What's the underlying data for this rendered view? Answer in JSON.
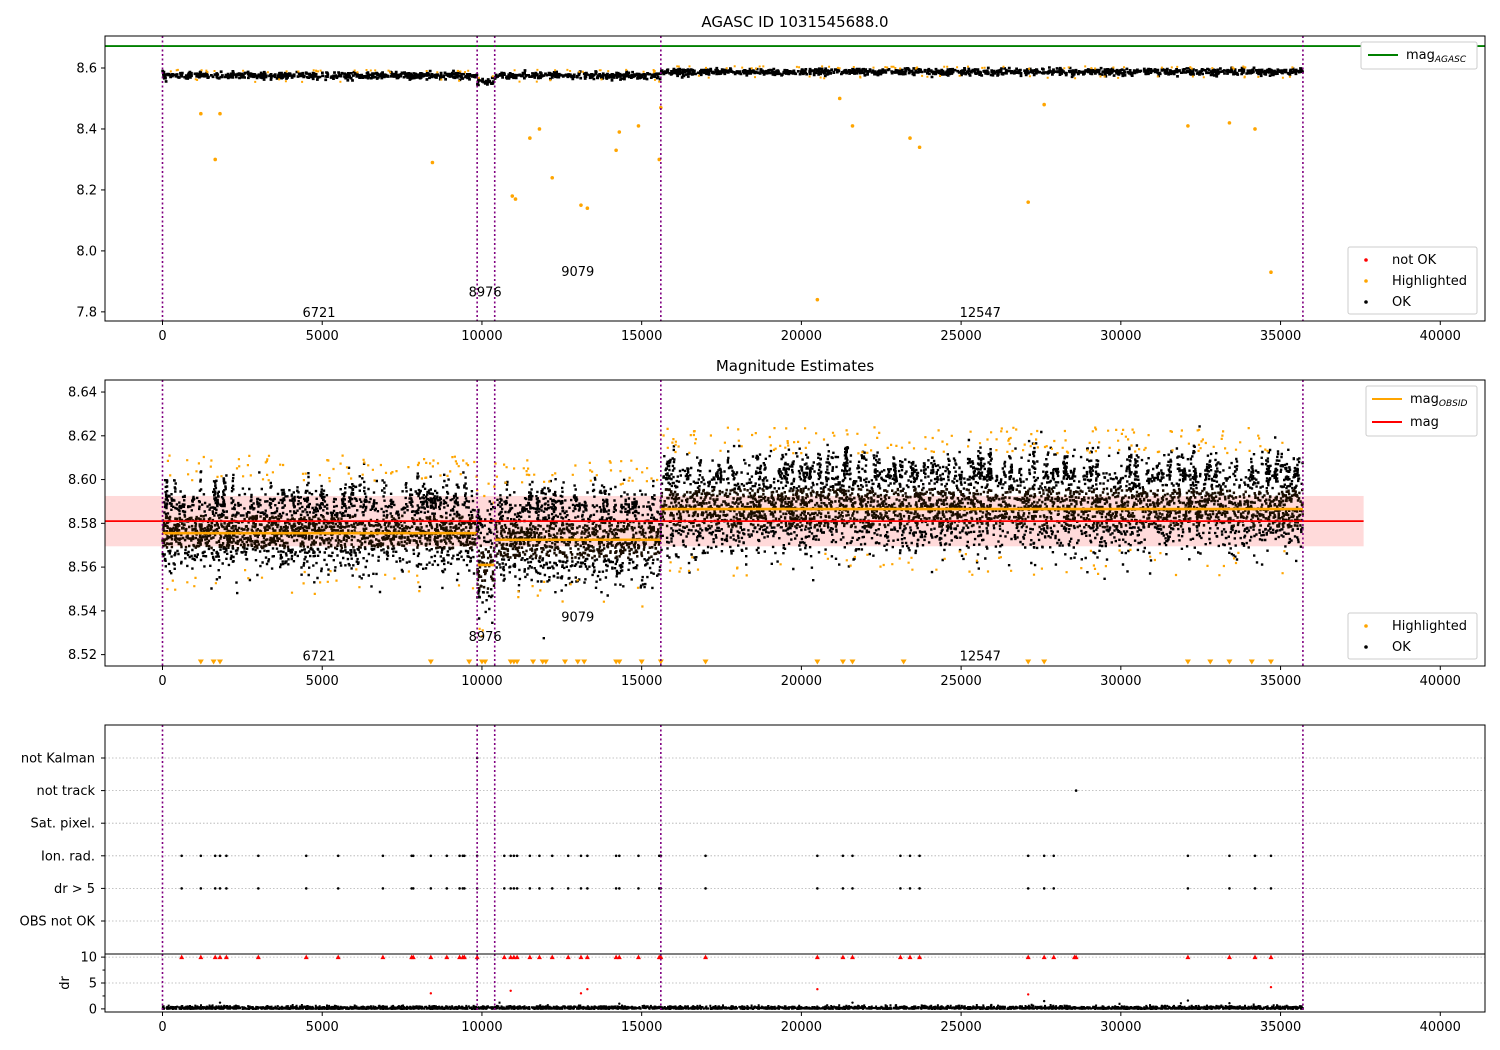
{
  "figure": {
    "title": "AGASC ID 1031545688.0",
    "subtitle": "Magnitude Estimates"
  },
  "colors": {
    "ok": "#000000",
    "highlighted": "#ffa500",
    "not_ok": "#ff0000",
    "mag_agasc": "#008000",
    "mag": "#ff0000",
    "mag_obsid": "#ffa500",
    "obs_boundary": "#800080",
    "band": "#ffd6d6"
  },
  "chart_data": [
    {
      "name": "magnitude-timeline",
      "type": "scatter",
      "title": "AGASC ID 1031545688.0",
      "xlim": [
        -1800,
        41400
      ],
      "ylim": [
        7.77,
        8.705
      ],
      "xticks": [
        0,
        5000,
        10000,
        15000,
        20000,
        25000,
        30000,
        35000,
        40000
      ],
      "xtick_labels": [
        "0",
        "5000",
        "10000",
        "15000",
        "20000",
        "25000",
        "30000",
        "35000",
        "40000"
      ],
      "yticks": [
        7.8,
        8.0,
        8.2,
        8.4,
        8.6
      ],
      "ytick_labels": [
        "7.8",
        "8.0",
        "8.2",
        "8.4",
        "8.6"
      ],
      "mag_agasc": 8.672,
      "obs_boundaries": [
        0,
        9850,
        10400,
        15600,
        35700
      ],
      "obs_labels": [
        {
          "text": "6721",
          "x": 4900,
          "y": 7.8
        },
        {
          "text": "8976",
          "x": 10100,
          "y": 7.867
        },
        {
          "text": "9079",
          "x": 13000,
          "y": 7.934
        },
        {
          "text": "12547",
          "x": 25600,
          "y": 7.8
        }
      ],
      "band_mean": [
        {
          "x0": 0,
          "x1": 9850,
          "y": 8.575
        },
        {
          "x0": 9850,
          "x1": 10400,
          "y": 8.555
        },
        {
          "x0": 10400,
          "x1": 15600,
          "y": 8.575
        },
        {
          "x0": 15600,
          "x1": 35700,
          "y": 8.587
        }
      ],
      "band_spread": 0.009,
      "highlighted": [
        [
          1200,
          8.45
        ],
        [
          1650,
          8.3
        ],
        [
          1800,
          8.45
        ],
        [
          8450,
          8.29
        ],
        [
          10950,
          8.18
        ],
        [
          11050,
          8.17
        ],
        [
          11500,
          8.37
        ],
        [
          11800,
          8.4
        ],
        [
          12200,
          8.24
        ],
        [
          13100,
          8.15
        ],
        [
          13300,
          8.14
        ],
        [
          14200,
          8.33
        ],
        [
          14300,
          8.39
        ],
        [
          14900,
          8.41
        ],
        [
          15550,
          8.3
        ],
        [
          15600,
          8.47
        ],
        [
          20500,
          7.84
        ],
        [
          21200,
          8.5
        ],
        [
          21600,
          8.41
        ],
        [
          23400,
          8.37
        ],
        [
          23700,
          8.34
        ],
        [
          27100,
          8.16
        ],
        [
          27600,
          8.48
        ],
        [
          32100,
          8.41
        ],
        [
          33400,
          8.42
        ],
        [
          34200,
          8.4
        ],
        [
          34700,
          7.93
        ]
      ],
      "legend": [
        {
          "label": "not OK",
          "kind": "marker",
          "color_key": "not_ok"
        },
        {
          "label": "Highlighted",
          "kind": "marker",
          "color_key": "highlighted"
        },
        {
          "label": "OK",
          "kind": "marker",
          "color_key": "ok"
        }
      ],
      "legend_position": "lower-right",
      "legend_line": {
        "label": "mag",
        "subscript": "AGASC"
      },
      "legend_line_position": "upper-right"
    },
    {
      "name": "magnitude-estimates",
      "type": "scatter",
      "title": "Magnitude Estimates",
      "xlim": [
        -1800,
        41400
      ],
      "ylim": [
        8.5148,
        8.6455
      ],
      "xticks": [
        0,
        5000,
        10000,
        15000,
        20000,
        25000,
        30000,
        35000,
        40000
      ],
      "xtick_labels": [
        "0",
        "5000",
        "10000",
        "15000",
        "20000",
        "25000",
        "30000",
        "35000",
        "40000"
      ],
      "yticks": [
        8.52,
        8.54,
        8.56,
        8.58,
        8.6,
        8.62,
        8.64
      ],
      "ytick_labels": [
        "8.52",
        "8.54",
        "8.56",
        "8.58",
        "8.60",
        "8.62",
        "8.64"
      ],
      "mag": 8.581,
      "mag_band": [
        8.5695,
        8.5925
      ],
      "mag_band_xlim": [
        -1800,
        37600
      ],
      "mag_obsid": [
        {
          "x0": 0,
          "x1": 9850,
          "y": 8.5755
        },
        {
          "x0": 9850,
          "x1": 10400,
          "y": 8.561
        },
        {
          "x0": 10400,
          "x1": 15600,
          "y": 8.5725
        },
        {
          "x0": 15600,
          "x1": 35700,
          "y": 8.5865
        }
      ],
      "segment_spread": [
        {
          "x0": 0,
          "x1": 9850,
          "lo": 8.565,
          "hi": 8.587
        },
        {
          "x0": 9850,
          "x1": 10400,
          "lo": 8.545,
          "hi": 8.575
        },
        {
          "x0": 10400,
          "x1": 15600,
          "lo": 8.56,
          "hi": 8.585
        },
        {
          "x0": 15600,
          "x1": 35700,
          "lo": 8.574,
          "hi": 8.6
        }
      ],
      "obs_boundaries": [
        0,
        9850,
        10400,
        15600,
        35700
      ],
      "obs_labels": [
        {
          "text": "6721",
          "x": 4900,
          "y": 8.5195
        },
        {
          "text": "8976",
          "x": 10100,
          "y": 8.5285
        },
        {
          "text": "9079",
          "x": 13000,
          "y": 8.5375
        },
        {
          "text": "12547",
          "x": 25600,
          "y": 8.5195
        }
      ],
      "highlighted_low": [
        1200,
        1600,
        1800,
        8400,
        9600,
        10000,
        10100,
        10900,
        11000,
        11100,
        11600,
        11900,
        12000,
        12600,
        13000,
        13200,
        14200,
        14300,
        15000,
        15600,
        17000,
        20500,
        21300,
        21600,
        23200,
        27100,
        27600,
        32100,
        32800,
        33400,
        34100,
        34700
      ],
      "legend": [
        {
          "label": "Highlighted",
          "kind": "marker",
          "color_key": "highlighted"
        },
        {
          "label": "OK",
          "kind": "marker",
          "color_key": "ok"
        }
      ],
      "legend_position": "lower-right",
      "legend_lines": [
        {
          "label": "mag",
          "subscript": "OBSID",
          "color_key": "mag_obsid"
        },
        {
          "label": "mag",
          "subscript": "",
          "color_key": "mag"
        }
      ],
      "legend_lines_position": "upper-right"
    },
    {
      "name": "flags",
      "type": "scatter",
      "xlim": [
        -1800,
        41400
      ],
      "categories": [
        "not Kalman",
        "not track",
        "Sat. pixel.",
        "Ion. rad.",
        "dr > 5",
        "OBS not OK"
      ],
      "flag_points": {
        "not Kalman": [
          9850
        ],
        "not track": [
          28600
        ],
        "Sat. pixel.": [],
        "Ion. rad.": [
          600,
          1200,
          1650,
          1800,
          2000,
          3000,
          4500,
          5500,
          6900,
          7800,
          7850,
          8400,
          8900,
          9300,
          9400,
          9450,
          9850,
          10700,
          10900,
          11000,
          11100,
          11500,
          11800,
          12200,
          12700,
          13100,
          13300,
          14200,
          14300,
          14900,
          15550,
          15600,
          17000,
          20500,
          21300,
          21600,
          23100,
          23400,
          23700,
          27100,
          27600,
          27900,
          32100,
          33400,
          34200,
          34700
        ],
        "dr > 5": [
          600,
          1200,
          1650,
          1800,
          2000,
          3000,
          4500,
          5500,
          6900,
          7800,
          7850,
          8400,
          8900,
          9300,
          9400,
          9450,
          9850,
          10700,
          10900,
          11000,
          11100,
          11500,
          11800,
          12200,
          12700,
          13100,
          13300,
          14200,
          14300,
          14900,
          15550,
          15600,
          17000,
          20500,
          21300,
          21600,
          23100,
          23400,
          23700,
          27100,
          27600,
          27900,
          32100,
          33400,
          34200,
          34700
        ],
        "OBS not OK": []
      },
      "obs_boundaries": [
        0,
        9850,
        10400,
        15600,
        35700
      ]
    },
    {
      "name": "dr",
      "type": "scatter",
      "ylabel": "dr",
      "xlim": [
        -1800,
        41400
      ],
      "ylim": [
        -0.6,
        10.6
      ],
      "xticks": [
        0,
        5000,
        10000,
        15000,
        20000,
        25000,
        30000,
        35000,
        40000
      ],
      "xtick_labels": [
        "0",
        "5000",
        "10000",
        "15000",
        "20000",
        "25000",
        "30000",
        "35000",
        "40000"
      ],
      "yticks": [
        0,
        5,
        10
      ],
      "ytick_labels": [
        "0",
        "5",
        "10"
      ],
      "capped_points": [
        600,
        1200,
        1650,
        1800,
        2000,
        3000,
        4500,
        5500,
        6900,
        7800,
        7850,
        8400,
        8900,
        9300,
        9400,
        9450,
        9850,
        10700,
        10900,
        11000,
        11100,
        11500,
        11800,
        12200,
        12700,
        13100,
        13300,
        14200,
        14300,
        14900,
        15550,
        15600,
        17000,
        20500,
        21300,
        21600,
        23100,
        23400,
        23700,
        27100,
        27600,
        27900,
        28550,
        28600,
        32100,
        33400,
        34200,
        34700
      ],
      "mid_points": [
        [
          8400,
          3.0
        ],
        [
          10900,
          3.5
        ],
        [
          13100,
          3.0
        ],
        [
          13300,
          3.8
        ],
        [
          20500,
          3.8
        ],
        [
          27100,
          2.8
        ],
        [
          34700,
          4.2
        ],
        [
          1800,
          1.2
        ],
        [
          14300,
          1.0
        ],
        [
          21600,
          1.2
        ],
        [
          27600,
          1.5
        ],
        [
          32100,
          1.6
        ],
        [
          33400,
          1.1
        ]
      ],
      "obs_boundaries": [
        0,
        9850,
        10400,
        15600,
        35700
      ]
    }
  ]
}
